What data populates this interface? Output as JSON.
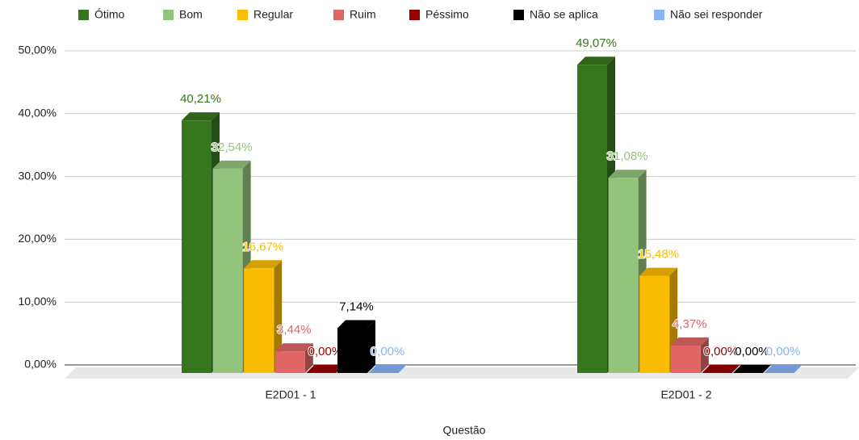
{
  "chart_data": {
    "type": "bar3d",
    "x_label": "Questão",
    "categories": [
      "E2D01 - 1",
      "E2D01 - 2"
    ],
    "series": [
      {
        "name": "Ótimo",
        "color": "#38761d",
        "values": [
          40.21,
          49.07
        ],
        "value_labels": [
          "40,21%",
          "49,07%"
        ]
      },
      {
        "name": "Bom",
        "color": "#93c47d",
        "values": [
          32.54,
          31.08
        ],
        "value_labels": [
          "32,54%",
          "31,08%"
        ]
      },
      {
        "name": "Regular",
        "color": "#fbbc04",
        "values": [
          16.67,
          15.48
        ],
        "value_labels": [
          "16,67%",
          "15,48%"
        ]
      },
      {
        "name": "Ruim",
        "color": "#e06666",
        "values": [
          3.44,
          4.37
        ],
        "value_labels": [
          "3,44%",
          "4,37%"
        ]
      },
      {
        "name": "Péssimo",
        "color": "#990000",
        "values": [
          0,
          0
        ],
        "value_labels": [
          "0,00%",
          "0,00%"
        ]
      },
      {
        "name": "Não se aplica",
        "color": "#000000",
        "values": [
          7.14,
          0
        ],
        "value_labels": [
          "7,14%",
          "0,00%"
        ]
      },
      {
        "name": "Não sei responder",
        "color": "#8ab4f8",
        "values": [
          0,
          0
        ],
        "value_labels": [
          "0,00%",
          "0,00%"
        ]
      }
    ],
    "ylim": [
      0,
      50
    ],
    "yticks": [
      {
        "value": 0,
        "label": "0,00%"
      },
      {
        "value": 10,
        "label": "10,00%"
      },
      {
        "value": 20,
        "label": "20,00%"
      },
      {
        "value": 30,
        "label": "30,00%"
      },
      {
        "value": 40,
        "label": "40,00%"
      },
      {
        "value": 50,
        "label": "50,00%"
      }
    ],
    "grid": true,
    "legend": "top"
  }
}
